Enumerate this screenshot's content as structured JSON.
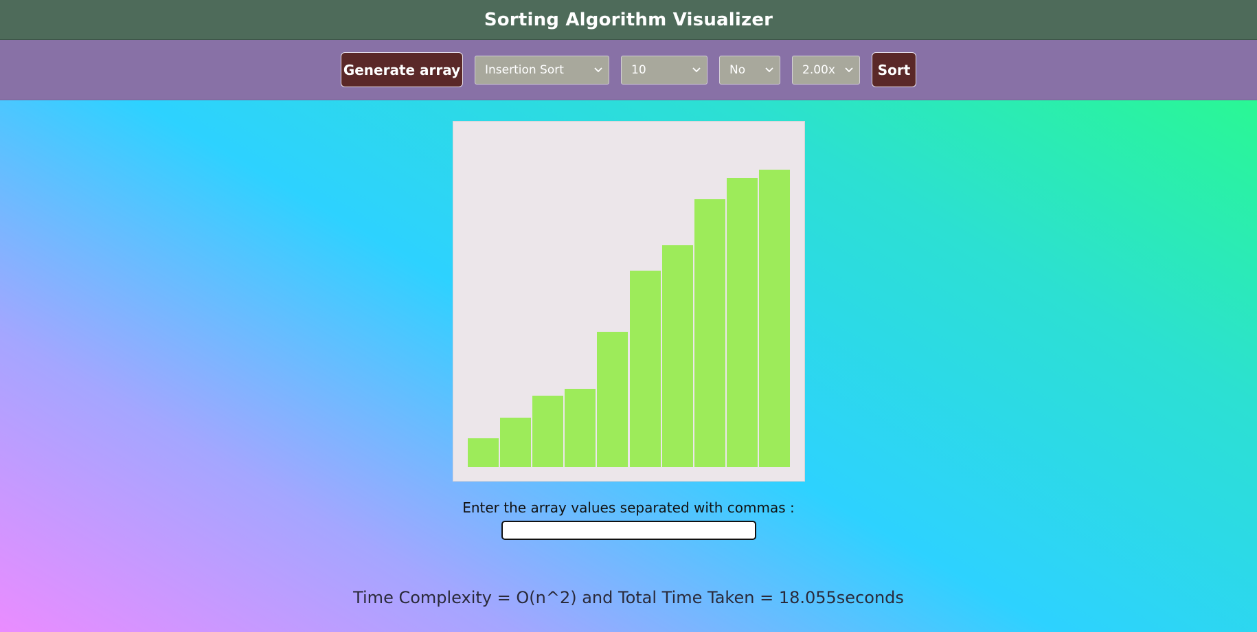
{
  "header": {
    "title": "Sorting Algorithm Visualizer"
  },
  "toolbar": {
    "generate_label": "Generate array",
    "algorithm_selected": "Insertion Sort",
    "size_selected": "10",
    "option_selected": "No",
    "speed_selected": "2.00x",
    "sort_label": "Sort"
  },
  "chart_data": {
    "type": "bar",
    "values": [
      38,
      66,
      95,
      104,
      180,
      262,
      295,
      357,
      385,
      396
    ],
    "ylim": [
      0,
      460
    ],
    "bar_color": "#9deb5a"
  },
  "input": {
    "label": "Enter the array values separated with commas :",
    "value": "",
    "placeholder": ""
  },
  "footer": {
    "time_info": "Time Complexity = O(n^2) and Total Time Taken = 18.055seconds"
  },
  "colors": {
    "header_bg": "#4e6b5a",
    "toolbar_bg": "#8871a6",
    "button_bg": "#5a2828",
    "select_bg": "#a8a89c",
    "panel_bg": "#ece6ea"
  },
  "icons": {
    "dropdown": "chevron-down-icon"
  }
}
